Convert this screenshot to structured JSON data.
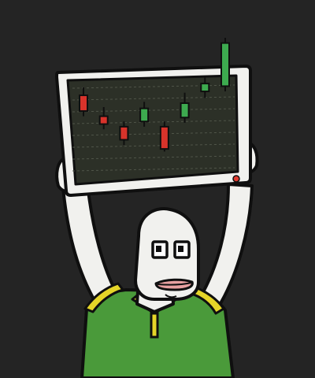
{
  "colors": {
    "background": "#242424",
    "outline": "#0f0f0f",
    "skin": "#f1f1ee",
    "shirt": "#4a9a3a",
    "shirt_trim": "#e5d528",
    "monitor_frame": "#f1f1ee",
    "screen": "#2c3027",
    "grid": "#4f5448",
    "candle_up": "#3daa4f",
    "candle_down": "#d8332b",
    "mouth": "#e7a0a0",
    "power_led": "#e23b30"
  },
  "icons": [
    "candlestick-chart-icon",
    "monitor-icon",
    "power-led-icon"
  ],
  "chart_data": {
    "type": "candlestick",
    "title": "",
    "xlabel": "",
    "ylabel": "",
    "grid": true,
    "candles": [
      {
        "open": 5.6,
        "close": 4.4,
        "high": 6.2,
        "low": 4.0,
        "direction": "down"
      },
      {
        "open": 4.0,
        "close": 3.4,
        "high": 4.7,
        "low": 3.0,
        "direction": "down"
      },
      {
        "open": 3.2,
        "close": 2.2,
        "high": 3.6,
        "low": 1.8,
        "direction": "down"
      },
      {
        "open": 3.6,
        "close": 4.6,
        "high": 5.1,
        "low": 3.2,
        "direction": "up"
      },
      {
        "open": 3.2,
        "close": 1.5,
        "high": 3.6,
        "low": 1.3,
        "direction": "down"
      },
      {
        "open": 3.9,
        "close": 5.0,
        "high": 5.8,
        "low": 3.5,
        "direction": "up"
      },
      {
        "open": 5.9,
        "close": 6.5,
        "high": 7.1,
        "low": 5.4,
        "direction": "up"
      },
      {
        "open": 6.3,
        "close": 9.6,
        "high": 10.0,
        "low": 5.9,
        "direction": "up"
      }
    ],
    "ylim": [
      0,
      10
    ]
  }
}
